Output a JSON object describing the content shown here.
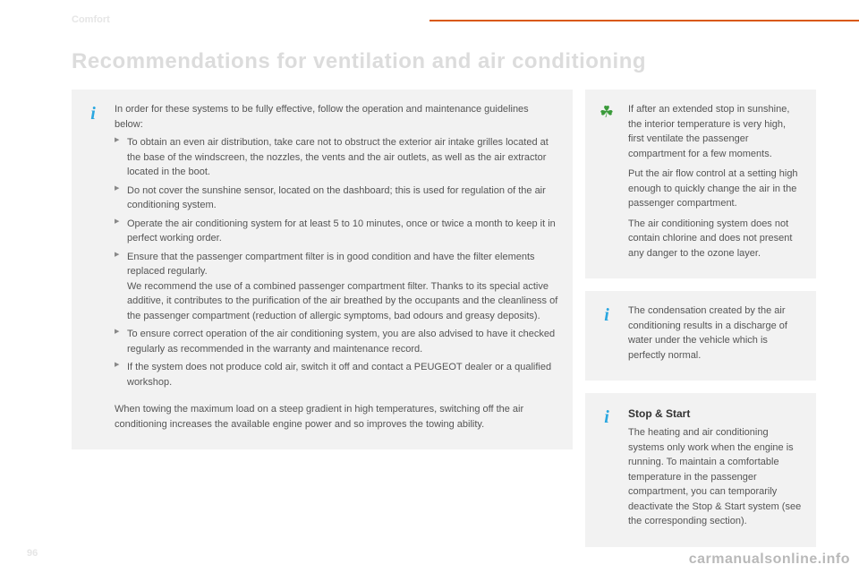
{
  "header": {
    "section": "Comfort",
    "title": "Recommendations for ventilation and air conditioning",
    "page_number": "96",
    "watermark": "carmanualsonline.info"
  },
  "colors": {
    "accent_bar": "#d9590b",
    "ghost_text": "#e6e6e6",
    "note_bg": "#f2f2f2",
    "body_text": "#555555",
    "info_icon": "#2aa7e0",
    "eco_icon": "#3a9a3a"
  },
  "main_note": {
    "intro": "In order for these systems to be fully effective, follow the operation and maintenance guidelines below:",
    "bullets": [
      {
        "text": "To obtain an even air distribution, take care not to obstruct the exterior air intake grilles located at the base of the windscreen, the nozzles, the vents and the air outlets, as well as the air extractor located in the boot."
      },
      {
        "text": "Do not cover the sunshine sensor, located on the dashboard; this is used for regulation of the air conditioning system."
      },
      {
        "text": "Operate the air conditioning system for at least 5 to 10 minutes, once or twice a month to keep it in perfect working order."
      },
      {
        "text": "Ensure that the passenger compartment filter is in good condition and have the filter elements replaced regularly.",
        "sub": "We recommend the use of a combined passenger compartment filter. Thanks to its special active additive, it contributes to the purification of the air breathed by the occupants and the cleanliness of the passenger compartment (reduction of allergic symptoms, bad odours and greasy deposits)."
      },
      {
        "text": "To ensure correct operation of the air conditioning system, you are also advised to have it checked regularly as recommended in the warranty and maintenance record."
      },
      {
        "text": "If the system does not produce cold air, switch it off and contact a PEUGEOT dealer or a qualified workshop."
      }
    ],
    "towing": "When towing the maximum load on a steep gradient in high temperatures, switching off the air conditioning increases the available engine power and so improves the towing ability."
  },
  "eco_note": {
    "p1": "If after an extended stop in sunshine, the interior temperature is very high, first ventilate the passenger compartment for a few moments.",
    "p2": "Put the air flow control at a setting high enough to quickly change the air in the passenger compartment.",
    "p3": "The air conditioning system does not contain chlorine and does not present any danger to the ozone layer."
  },
  "condensation_note": {
    "text": "The condensation created by the air conditioning results in a discharge of water under the vehicle which is perfectly normal."
  },
  "stop_start_note": {
    "heading": "Stop & Start",
    "text": "The heating and air conditioning systems only work when the engine is running. To maintain a comfortable temperature in the passenger compartment, you can temporarily deactivate the Stop & Start system (see the corresponding section)."
  }
}
